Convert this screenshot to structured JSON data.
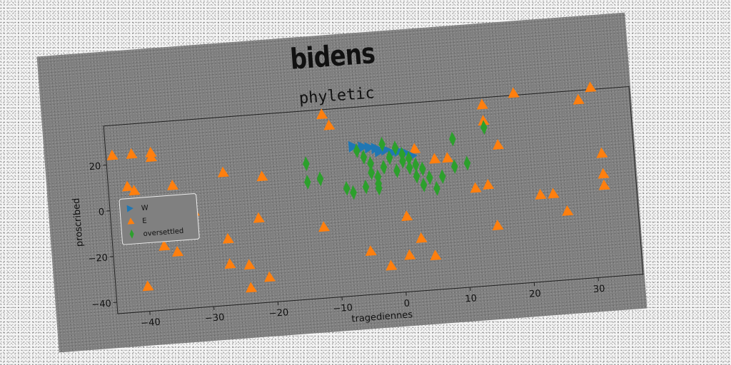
{
  "suptitle": "bidens",
  "chart_data": {
    "type": "scatter",
    "title": "phyletic",
    "xlabel": "tragediennes",
    "ylabel": "proscribed",
    "xlim": [
      -45,
      37
    ],
    "ylim": [
      -45,
      37
    ],
    "xticks": [
      -40,
      -30,
      -20,
      -10,
      0,
      10,
      20,
      30
    ],
    "yticks": [
      -40,
      -20,
      0,
      20
    ],
    "grid": false,
    "legend_position": "center-left",
    "series": [
      {
        "name": "W",
        "marker": "triangle-right",
        "color": "#1f77b4",
        "points": [
          [
            -6.5,
            20
          ],
          [
            -5,
            19.5
          ],
          [
            -4,
            19
          ],
          [
            -3,
            18.5
          ],
          [
            -2.5,
            17
          ],
          [
            -1.5,
            17.5
          ],
          [
            -0.5,
            16
          ],
          [
            0.5,
            16.5
          ],
          [
            1.5,
            15.5
          ],
          [
            2.5,
            14
          ]
        ]
      },
      {
        "name": "E",
        "marker": "triangle-up",
        "color": "#ff7f0e",
        "points": [
          [
            -44,
            24
          ],
          [
            -41,
            24
          ],
          [
            -38,
            24
          ],
          [
            -38,
            22
          ],
          [
            -42,
            10
          ],
          [
            -41,
            8
          ],
          [
            -35,
            9
          ],
          [
            -27,
            13
          ],
          [
            -21,
            10
          ],
          [
            -33,
            -3
          ],
          [
            -32,
            -3
          ],
          [
            -22,
            -8
          ],
          [
            -37,
            -17
          ],
          [
            -35,
            -20
          ],
          [
            -27,
            -16
          ],
          [
            -27,
            -27
          ],
          [
            -24,
            -28
          ],
          [
            -24,
            -38
          ],
          [
            -21,
            -34
          ],
          [
            -40,
            -34
          ],
          [
            -12,
            -14
          ],
          [
            -11,
            35
          ],
          [
            -10,
            30
          ],
          [
            -5,
            -26
          ],
          [
            -2,
            -33
          ],
          [
            1,
            -12
          ],
          [
            1,
            -29
          ],
          [
            3,
            -22
          ],
          [
            5,
            -30
          ],
          [
            6,
            12
          ],
          [
            8,
            12
          ],
          [
            12,
            -2
          ],
          [
            14,
            -1
          ],
          [
            14,
            34
          ],
          [
            14,
            27
          ],
          [
            15,
            -19
          ],
          [
            16,
            16
          ],
          [
            19,
            38
          ],
          [
            22,
            -7
          ],
          [
            24,
            -7
          ],
          [
            26,
            -15
          ],
          [
            29,
            33
          ],
          [
            31,
            38
          ],
          [
            32,
            9
          ],
          [
            32,
            0
          ],
          [
            32,
            -5
          ],
          [
            3,
            17
          ]
        ]
      },
      {
        "name": "oversettled",
        "marker": "thin-diamond",
        "color": "#2ca02c",
        "points": [
          [
            -14,
            14
          ],
          [
            -14,
            6
          ],
          [
            -12,
            7
          ],
          [
            -7,
            0
          ],
          [
            -5,
            2
          ],
          [
            -5,
            15
          ],
          [
            -4,
            12
          ],
          [
            -4,
            8
          ],
          [
            -3,
            6
          ],
          [
            -3,
            3
          ],
          [
            -2,
            10
          ],
          [
            -1,
            14
          ],
          [
            0,
            8
          ],
          [
            1,
            12
          ],
          [
            1,
            15
          ],
          [
            2,
            13
          ],
          [
            3,
            10
          ],
          [
            3,
            5
          ],
          [
            4,
            8
          ],
          [
            4,
            1
          ],
          [
            5,
            4
          ],
          [
            6,
            -1
          ],
          [
            7,
            4
          ],
          [
            9,
            20
          ],
          [
            9,
            8
          ],
          [
            11,
            9
          ],
          [
            14,
            24
          ],
          [
            -6,
            18
          ],
          [
            -2,
            20
          ],
          [
            0,
            18
          ],
          [
            -8,
            2
          ],
          [
            -3,
            1
          ],
          [
            2,
            9
          ]
        ]
      }
    ]
  }
}
